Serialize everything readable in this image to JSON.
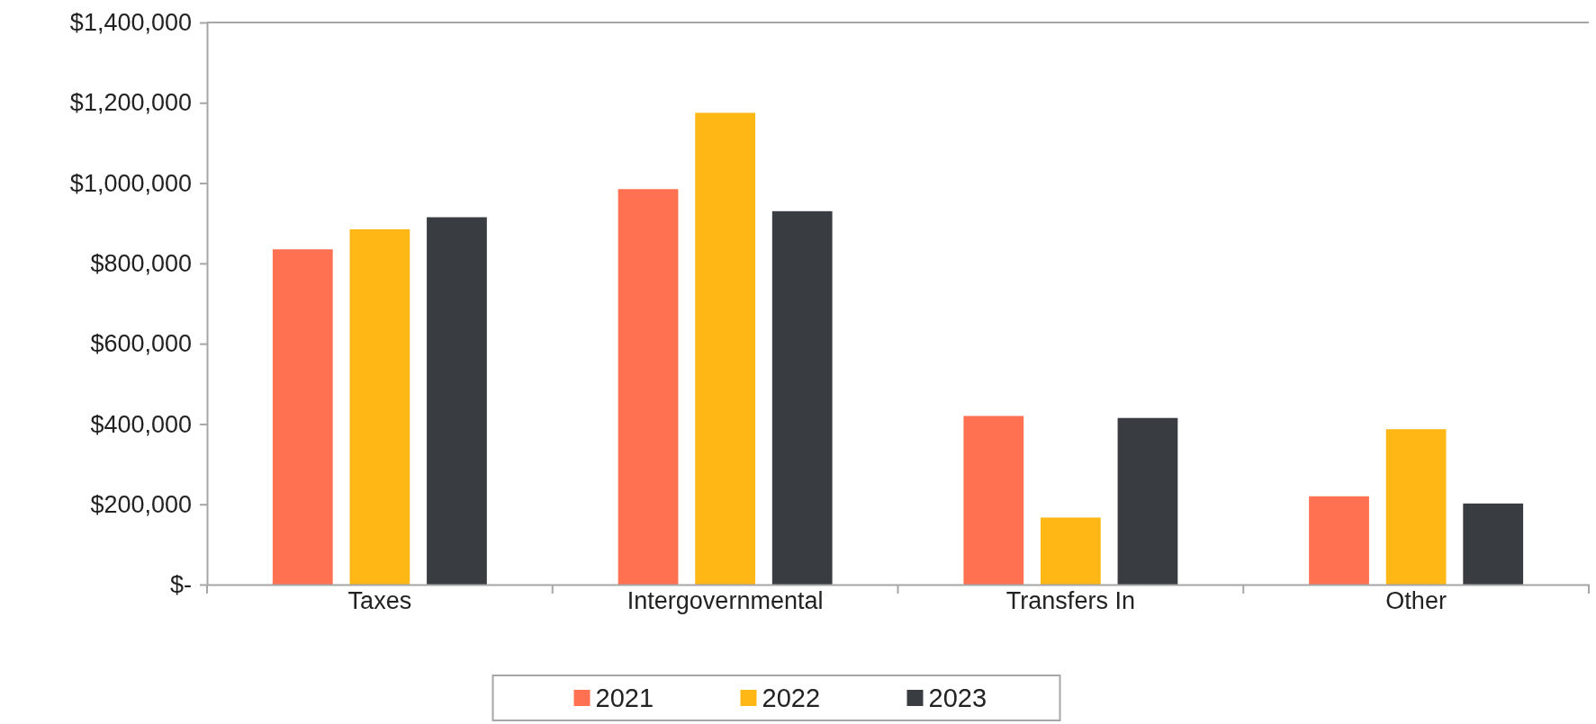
{
  "chart_data": {
    "type": "bar",
    "categories": [
      "Taxes",
      "Intergovernmental",
      "Transfers In",
      "Other"
    ],
    "series": [
      {
        "name": "2021",
        "color": "#ff7150",
        "values": [
          835000,
          985000,
          420000,
          220000
        ]
      },
      {
        "name": "2022",
        "color": "#ffb715",
        "values": [
          885000,
          1175000,
          167000,
          387000
        ]
      },
      {
        "name": "2023",
        "color": "#393d42",
        "values": [
          915000,
          930000,
          415000,
          202000
        ]
      }
    ],
    "ylim": [
      0,
      1400000
    ],
    "yticks": [
      {
        "value": 0,
        "label": "$-"
      },
      {
        "value": 200000,
        "label": "$200,000"
      },
      {
        "value": 400000,
        "label": "$400,000"
      },
      {
        "value": 600000,
        "label": "$600,000"
      },
      {
        "value": 800000,
        "label": "$800,000"
      },
      {
        "value": 1000000,
        "label": "$1,000,000"
      },
      {
        "value": 1200000,
        "label": "$1,200,000"
      },
      {
        "value": 1400000,
        "label": "$1,400,000"
      }
    ],
    "grid": false,
    "legend": "bottom"
  }
}
